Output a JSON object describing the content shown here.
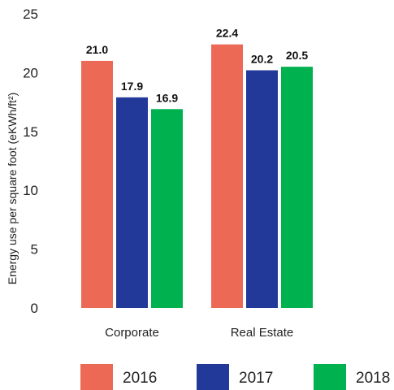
{
  "chart_data": {
    "type": "bar",
    "title": "",
    "xlabel": "",
    "ylabel": "Energy use per square foot (eKWh/ft²)",
    "categories": [
      "Corporate",
      "Real Estate"
    ],
    "series": [
      {
        "name": "2016",
        "values": [
          21.0,
          22.4
        ],
        "labels": [
          "21.0",
          "22.4"
        ],
        "color": "#ec6a55"
      },
      {
        "name": "2017",
        "values": [
          17.9,
          20.2
        ],
        "labels": [
          "17.9",
          "20.2"
        ],
        "color": "#23399a"
      },
      {
        "name": "2018",
        "values": [
          16.9,
          20.5
        ],
        "labels": [
          "16.9",
          "20.5"
        ],
        "color": "#00b14f"
      }
    ],
    "ylim": [
      0,
      25
    ],
    "yticks": [
      "0",
      "5",
      "10",
      "15",
      "20",
      "25"
    ],
    "grid": false,
    "legend": "bottom"
  }
}
